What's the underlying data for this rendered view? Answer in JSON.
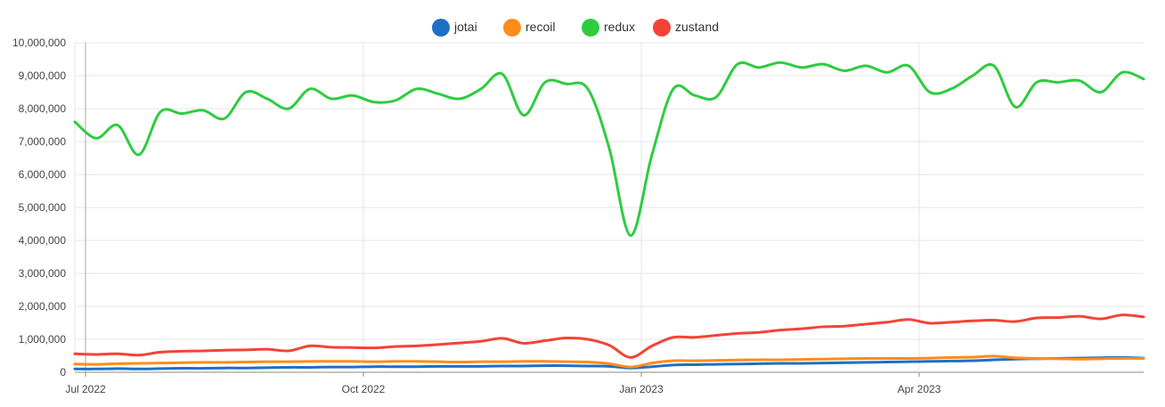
{
  "chart_data": {
    "type": "line",
    "title": "",
    "xlabel": "",
    "ylabel": "",
    "ylim": [
      0,
      10000000
    ],
    "yticks": [
      0,
      1000000,
      2000000,
      3000000,
      4000000,
      5000000,
      6000000,
      7000000,
      8000000,
      9000000,
      10000000
    ],
    "ytick_labels": [
      "0",
      "1,000,000",
      "2,000,000",
      "3,000,000",
      "4,000,000",
      "5,000,000",
      "6,000,000",
      "7,000,000",
      "8,000,000",
      "9,000,000",
      "10,000,000"
    ],
    "xticks": [
      {
        "label": "Jul 2022",
        "week": 0.5
      },
      {
        "label": "Oct 2022",
        "week": 13.5
      },
      {
        "label": "Jan 2023",
        "week": 26.5
      },
      {
        "label": "Apr 2023",
        "week": 39.5
      }
    ],
    "xlim": [
      0,
      50
    ],
    "grid": true,
    "legend_position": "top-center",
    "series": [
      {
        "name": "jotai",
        "color": "#1f6fc5",
        "values": [
          100000,
          100000,
          110000,
          100000,
          110000,
          120000,
          120000,
          130000,
          130000,
          140000,
          150000,
          150000,
          160000,
          160000,
          170000,
          170000,
          170000,
          180000,
          180000,
          180000,
          190000,
          190000,
          200000,
          200000,
          190000,
          180000,
          130000,
          170000,
          220000,
          230000,
          240000,
          250000,
          260000,
          270000,
          270000,
          280000,
          290000,
          300000,
          310000,
          320000,
          330000,
          340000,
          350000,
          380000,
          400000,
          410000,
          420000,
          430000,
          440000,
          450000,
          430000
        ]
      },
      {
        "name": "recoil",
        "color": "#ff8c1a",
        "values": [
          250000,
          240000,
          260000,
          270000,
          280000,
          290000,
          300000,
          300000,
          310000,
          320000,
          320000,
          330000,
          330000,
          330000,
          320000,
          330000,
          330000,
          320000,
          310000,
          320000,
          320000,
          330000,
          330000,
          320000,
          310000,
          260000,
          160000,
          280000,
          350000,
          350000,
          360000,
          370000,
          380000,
          380000,
          390000,
          400000,
          410000,
          420000,
          420000,
          420000,
          430000,
          450000,
          460000,
          490000,
          440000,
          420000,
          410000,
          400000,
          410000,
          420000,
          420000
        ]
      },
      {
        "name": "redux",
        "color": "#2ecc40",
        "values": [
          7600000,
          7100000,
          7500000,
          6600000,
          7900000,
          7850000,
          7950000,
          7700000,
          8500000,
          8300000,
          8000000,
          8600000,
          8300000,
          8400000,
          8200000,
          8250000,
          8600000,
          8450000,
          8300000,
          8600000,
          9050000,
          7800000,
          8800000,
          8750000,
          8600000,
          6800000,
          4150000,
          6600000,
          8600000,
          8400000,
          8350000,
          9350000,
          9250000,
          9400000,
          9250000,
          9350000,
          9150000,
          9300000,
          9100000,
          9300000,
          8500000,
          8600000,
          9000000,
          9300000,
          8050000,
          8800000,
          8800000,
          8850000,
          8500000,
          9100000,
          8900000
        ]
      },
      {
        "name": "zustand",
        "color": "#f44336",
        "values": [
          560000,
          540000,
          560000,
          520000,
          610000,
          640000,
          650000,
          670000,
          680000,
          700000,
          650000,
          800000,
          760000,
          750000,
          740000,
          780000,
          800000,
          840000,
          890000,
          940000,
          1030000,
          880000,
          960000,
          1040000,
          1000000,
          820000,
          450000,
          800000,
          1060000,
          1060000,
          1120000,
          1180000,
          1210000,
          1280000,
          1320000,
          1380000,
          1400000,
          1460000,
          1520000,
          1600000,
          1490000,
          1520000,
          1560000,
          1580000,
          1540000,
          1650000,
          1660000,
          1700000,
          1620000,
          1740000,
          1680000
        ]
      }
    ]
  }
}
